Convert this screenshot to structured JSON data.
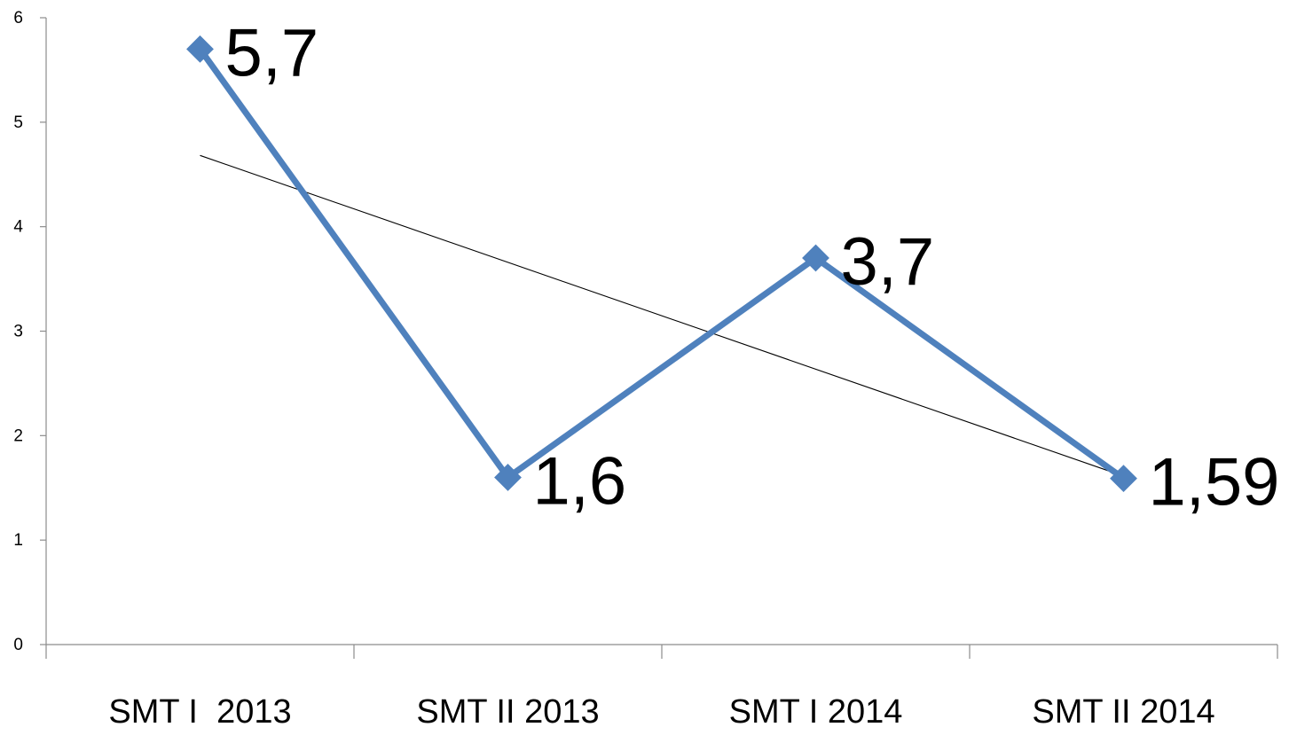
{
  "chart_data": {
    "type": "line",
    "categories": [
      "SMT I  2013",
      "SMT II 2013",
      "SMT I 2014",
      "SMT II 2014"
    ],
    "series": [
      {
        "values": [
          5.7,
          1.6,
          3.7,
          1.59
        ],
        "data_labels": [
          "5,7",
          "1,6",
          "3,7",
          "1,59"
        ],
        "color": "#4F81BD",
        "marker": "diamond"
      }
    ],
    "trendline": {
      "type": "linear",
      "color": "#000000"
    },
    "y_ticks": [
      "0",
      "1",
      "2",
      "3",
      "4",
      "5",
      "6"
    ],
    "ylim": [
      0,
      6
    ],
    "title": "",
    "xlabel": "",
    "ylabel": "",
    "grid": false,
    "legend": "none"
  }
}
